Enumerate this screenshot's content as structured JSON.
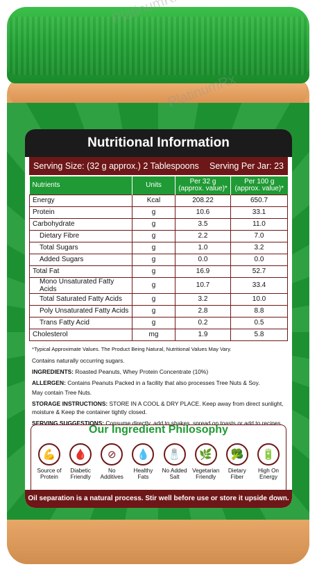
{
  "panel": {
    "title": "Nutritional Information",
    "serving_size": "Serving Size: (32 g approx.) 2 Tablespoons",
    "serving_per_jar": "Serving Per Jar: 23"
  },
  "table": {
    "headers": [
      "Nutrients",
      "Units",
      "Per 32 g\n(approx. value)*",
      "Per 100 g\n(approx. value)*"
    ],
    "header_per32_a": "Per 32 g",
    "header_per32_b": "(approx. value)*",
    "header_per100_a": "Per 100 g",
    "header_per100_b": "(approx. value)*",
    "rows": [
      {
        "name": "Energy",
        "unit": "Kcal",
        "per32": "208.22",
        "per100": "650.7"
      },
      {
        "name": "Protein",
        "unit": "g",
        "per32": "10.6",
        "per100": "33.1"
      },
      {
        "name": "Carbohydrate",
        "unit": "g",
        "per32": "3.5",
        "per100": "11.0"
      },
      {
        "name": "Dietary Fibre",
        "unit": "g",
        "per32": "2.2",
        "per100": "7.0"
      },
      {
        "name": "Total Sugars",
        "unit": "g",
        "per32": "1.0",
        "per100": "3.2"
      },
      {
        "name": "Added Sugars",
        "unit": "g",
        "per32": "0.0",
        "per100": "0.0"
      },
      {
        "name": "Total Fat",
        "unit": "g",
        "per32": "16.9",
        "per100": "52.7"
      },
      {
        "name": "Mono Unsaturated Fatty Acids",
        "unit": "g",
        "per32": "10.7",
        "per100": "33.4"
      },
      {
        "name": "Total Saturated Fatty Acids",
        "unit": "g",
        "per32": "3.2",
        "per100": "10.0"
      },
      {
        "name": "Poly Unsaturated Fatty Acids",
        "unit": "g",
        "per32": "2.8",
        "per100": "8.8"
      },
      {
        "name": "Trans Fatty Acid",
        "unit": "g",
        "per32": "0.2",
        "per100": "0.5"
      },
      {
        "name": "Cholesterol",
        "unit": "mg",
        "per32": "1.9",
        "per100": "5.8"
      }
    ]
  },
  "notes": {
    "typical": "*Typical Approximate Values. The Product Being Natural, Nutritional Values May Vary.",
    "sugars": "Contains naturally occurring sugars.",
    "ingredients_label": "INGREDIENTS:",
    "ingredients": "Roasted Peanuts, Whey Protein Concentrate (10%)",
    "allergen_label": "ALLERGEN:",
    "allergen": "Contains Peanuts Packed in a facility that also processes Tree Nuts & Soy.",
    "allergen_2": "May contain Tree Nuts.",
    "storage_label": "STORAGE INSTRUCTIONS:",
    "storage": "STORE IN A COOL & DRY PLACE. Keep away from direct sunlight, moisture & Keep the container tightly closed.",
    "serving_label": "SERVING SUGGESTIONS:",
    "serving": "Consume directly, add to shakes, spread on toasts or add to recipes."
  },
  "philosophy": {
    "title": "Our Ingredient Philosophy",
    "items": [
      {
        "label": "Source of Protein",
        "icon": "muscle-icon",
        "glyph": "💪"
      },
      {
        "label": "Diabetic Friendly",
        "icon": "glucometer-icon",
        "glyph": "🩸"
      },
      {
        "label": "No Additives",
        "icon": "no-additives-icon",
        "glyph": "⊘"
      },
      {
        "label": "Healthy Fats",
        "icon": "oil-drop-icon",
        "glyph": "💧"
      },
      {
        "label": "No Added Salt",
        "icon": "salt-shaker-icon",
        "glyph": "🧂"
      },
      {
        "label": "Vegetarian Friendly",
        "icon": "leaf-hands-icon",
        "glyph": "🌿"
      },
      {
        "label": "Dietary Fiber",
        "icon": "broccoli-icon",
        "glyph": "🥦"
      },
      {
        "label": "High On Energy",
        "icon": "battery-icon",
        "glyph": "🔋"
      }
    ]
  },
  "footer": "Oil separation is a natural process. Stir well before use or store it upside down.",
  "watermark": "PlatinumRx"
}
